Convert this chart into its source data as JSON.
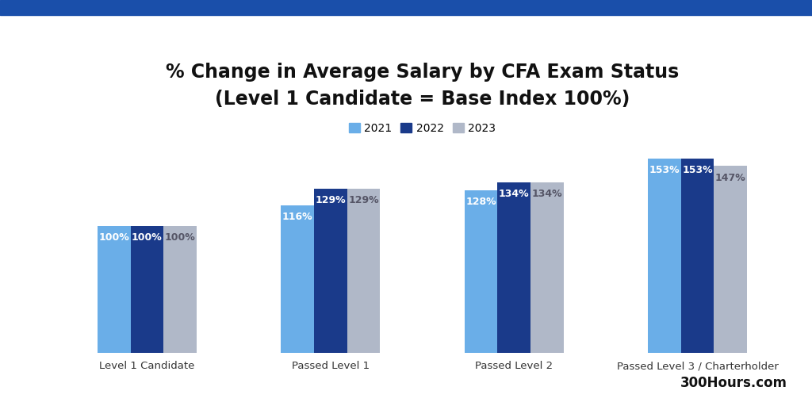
{
  "title_line1": "% Change in Average Salary by CFA Exam Status",
  "title_line2": "(Level 1 Candidate = Base Index 100%)",
  "categories": [
    "Level 1 Candidate",
    "Passed Level 1",
    "Passed Level 2",
    "Passed Level 3 / Charterholder"
  ],
  "series": {
    "2021": [
      100,
      116,
      128,
      153
    ],
    "2022": [
      100,
      129,
      134,
      153
    ],
    "2023": [
      100,
      129,
      134,
      147
    ]
  },
  "colors": {
    "2021": "#6aaee8",
    "2022": "#1a3a8a",
    "2023": "#b0b8c8"
  },
  "legend_labels": [
    "2021",
    "2022",
    "2023"
  ],
  "bar_width": 0.18,
  "ylim": [
    0,
    185
  ],
  "label_color_2021": "#ffffff",
  "label_color_2022": "#ffffff",
  "label_color_2023": "#555566",
  "background_color": "#ffffff",
  "header_color": "#1a4faa",
  "watermark": "300Hours.com",
  "title_fontsize": 17,
  "axis_label_fontsize": 10,
  "tick_fontsize": 9.5,
  "legend_fontsize": 10,
  "bar_label_fontsize": 9
}
